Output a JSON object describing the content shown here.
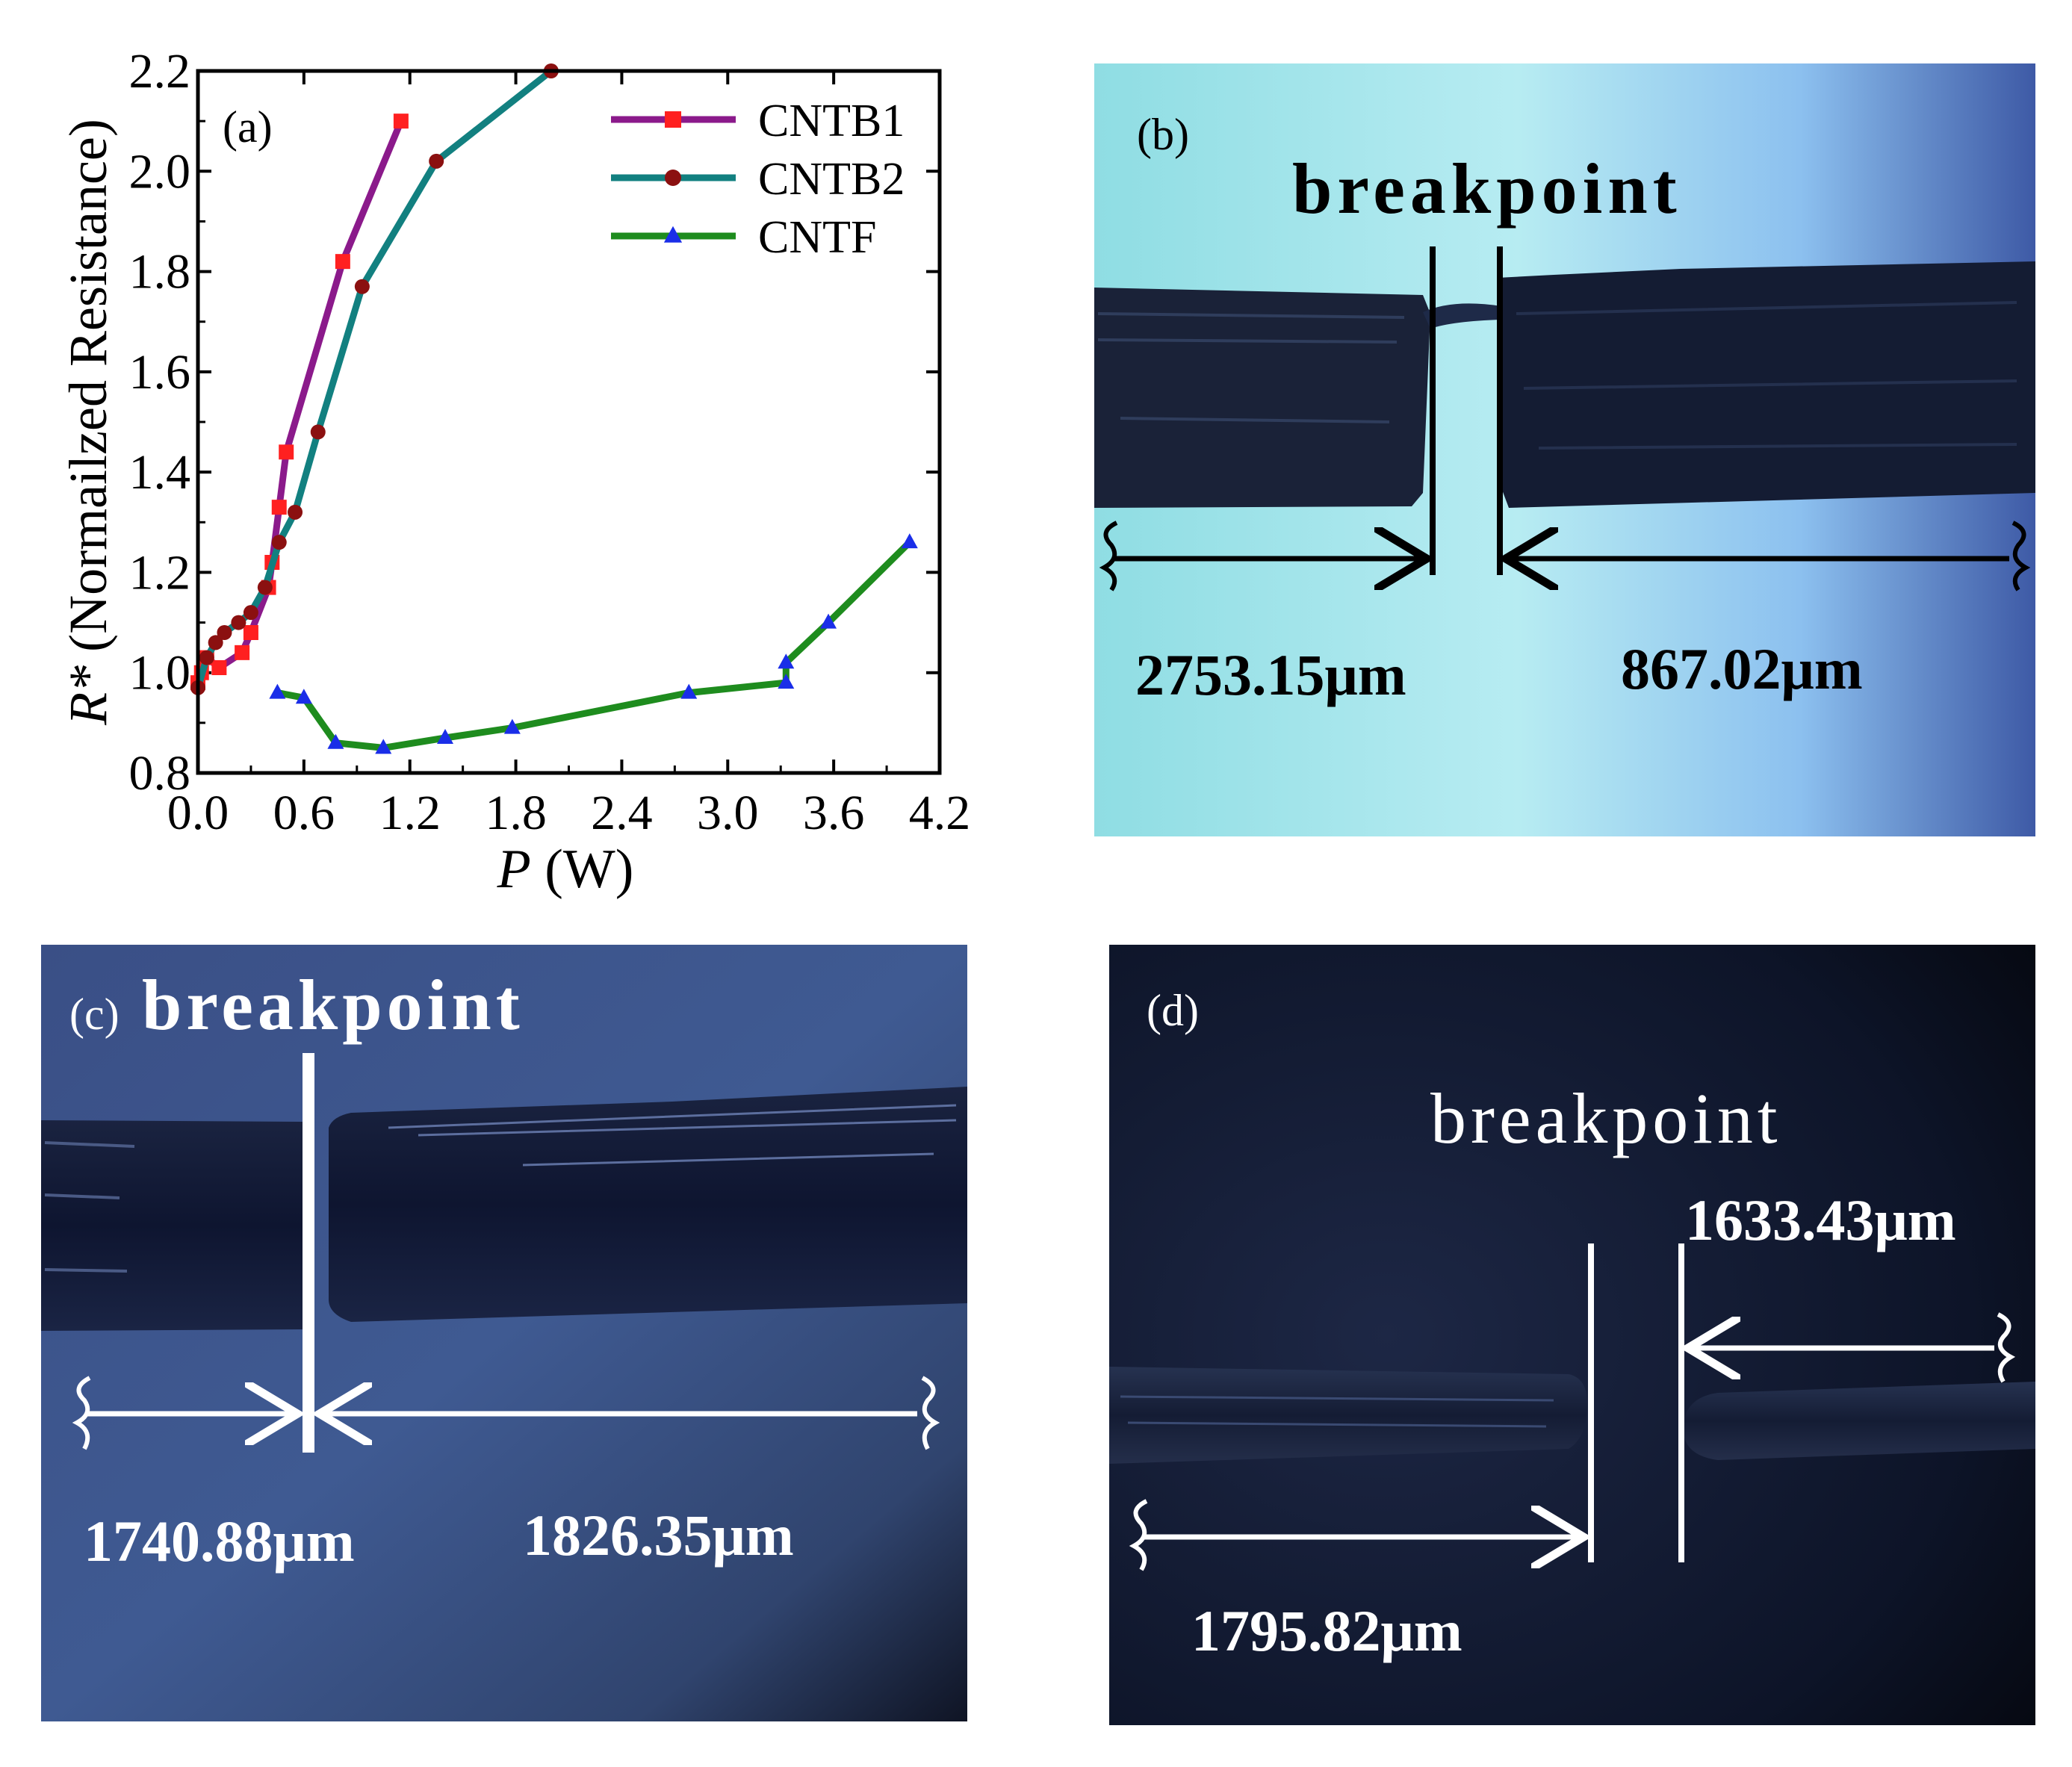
{
  "chart_data": {
    "type": "line",
    "panel_label": "(a)",
    "xlabel": {
      "var": "P",
      "unit": " (W)"
    },
    "ylabel": {
      "var": "R*",
      "text": " (Normailzed Resistance)"
    },
    "xlim": [
      0.0,
      4.2
    ],
    "ylim": [
      0.8,
      2.2
    ],
    "xticks": [
      "0.0",
      "0.6",
      "1.2",
      "1.8",
      "2.4",
      "3.0",
      "3.6",
      "4.2"
    ],
    "yticks": [
      "0.8",
      "1.0",
      "1.2",
      "1.4",
      "1.6",
      "1.8",
      "2.0",
      "2.2"
    ],
    "series": [
      {
        "name": "CNTB1",
        "color": "#8b1a8b",
        "marker": "square",
        "marker_color": "#ff2020",
        "x": [
          0.0,
          0.02,
          0.05,
          0.12,
          0.25,
          0.3,
          0.4,
          0.42,
          0.46,
          0.5,
          0.82,
          1.15
        ],
        "y": [
          0.98,
          1.0,
          1.03,
          1.01,
          1.04,
          1.08,
          1.17,
          1.22,
          1.33,
          1.44,
          1.82,
          2.1
        ]
      },
      {
        "name": "CNTB2",
        "color": "#128080",
        "marker": "circle",
        "marker_color": "#8b1010",
        "x": [
          0.0,
          0.05,
          0.1,
          0.15,
          0.23,
          0.3,
          0.38,
          0.46,
          0.55,
          0.68,
          0.93,
          1.35,
          2.0
        ],
        "y": [
          0.97,
          1.03,
          1.06,
          1.08,
          1.1,
          1.12,
          1.17,
          1.26,
          1.32,
          1.48,
          1.77,
          2.02,
          2.2
        ]
      },
      {
        "name": "CNTF",
        "color": "#1e8c1e",
        "marker": "triangle",
        "marker_color": "#1a2ee8",
        "x": [
          0.45,
          0.6,
          0.78,
          1.05,
          1.4,
          1.78,
          2.78,
          3.33,
          3.33,
          3.57,
          4.03
        ],
        "y": [
          0.96,
          0.95,
          0.86,
          0.85,
          0.87,
          0.89,
          0.96,
          0.98,
          1.02,
          1.1,
          1.26
        ]
      }
    ]
  },
  "panel_b": {
    "label": "(b)",
    "title": "breakpoint",
    "left_length": "2753.15μm",
    "right_length": "867.02μm"
  },
  "panel_c": {
    "label": "(c)",
    "title": "breakpoint",
    "left_length": "1740.88μm",
    "right_length": "1826.35μm"
  },
  "panel_d": {
    "label": "(d)",
    "title": "breakpoint",
    "right_length": "1633.43μm",
    "left_length": "1795.82μm"
  }
}
